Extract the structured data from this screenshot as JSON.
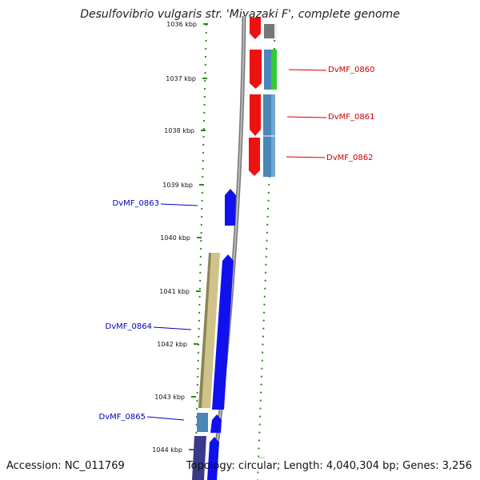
{
  "title": "Desulfovibrio vulgaris str. 'Miyazaki F', complete genome",
  "accession_text": "Accession: NC_011769",
  "topology_text": "Topology: circular; Length: 4,040,304 bp; Genes: 3,256",
  "colors": {
    "backbone": "#8a8a8a",
    "tick": "#2a8a1a",
    "red_gene": "#ee1111",
    "blue_gene": "#1111ee",
    "green_gene": "#33cc33",
    "steel_gene": "#4a86b8",
    "gray_gene": "#777777",
    "khaki_gene": "#cfc38a",
    "navy_gene": "#3a3a8a"
  },
  "ticks": [
    {
      "label": "1036 kbp"
    },
    {
      "label": "1037 kbp"
    },
    {
      "label": "1038 kbp"
    },
    {
      "label": "1039 kbp"
    },
    {
      "label": "1040 kbp"
    },
    {
      "label": "1041 kbp"
    },
    {
      "label": "1042 kbp"
    },
    {
      "label": "1043 kbp"
    },
    {
      "label": "1044 kbp"
    }
  ],
  "gene_labels": [
    {
      "text": "DvMF_0860",
      "color": "#cc0000"
    },
    {
      "text": "DvMF_0861",
      "color": "#cc0000"
    },
    {
      "text": "DvMF_0862",
      "color": "#cc0000"
    },
    {
      "text": "DvMF_0863",
      "color": "#0000bb"
    },
    {
      "text": "DvMF_0864",
      "color": "#0000bb"
    },
    {
      "text": "DvMF_0865",
      "color": "#0000bb"
    }
  ]
}
